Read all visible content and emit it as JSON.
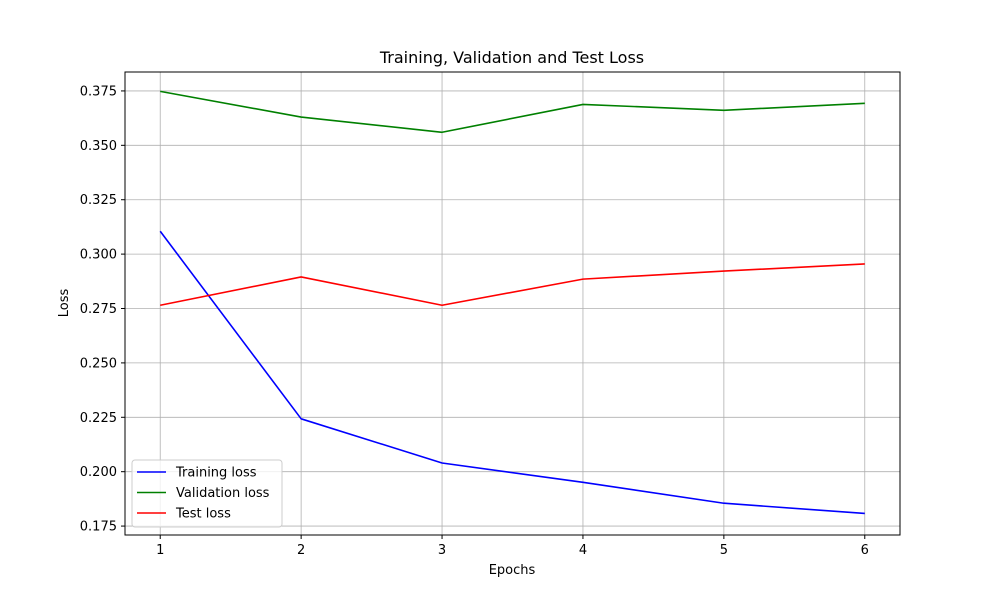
{
  "chart_data": {
    "type": "line",
    "title": "Training, Validation and Test Loss",
    "xlabel": "Epochs",
    "ylabel": "Loss",
    "x": [
      1,
      2,
      3,
      4,
      5,
      6
    ],
    "xlim": [
      0.75,
      6.25
    ],
    "ylim": [
      0.1709,
      0.3837
    ],
    "xticks": [
      "1",
      "2",
      "3",
      "4",
      "5",
      "6"
    ],
    "yticks": [
      "0.175",
      "0.200",
      "0.225",
      "0.250",
      "0.275",
      "0.300",
      "0.325",
      "0.350",
      "0.375"
    ],
    "grid": true,
    "legend_position": "lower-left",
    "series": [
      {
        "name": "Training loss",
        "color": "#0000ff",
        "values": [
          0.3105,
          0.2243,
          0.204,
          0.1951,
          0.1855,
          0.1808
        ]
      },
      {
        "name": "Validation loss",
        "color": "#008000",
        "values": [
          0.3748,
          0.363,
          0.356,
          0.3688,
          0.3661,
          0.3693
        ]
      },
      {
        "name": "Test loss",
        "color": "#ff0000",
        "values": [
          0.2765,
          0.2895,
          0.2765,
          0.2885,
          0.2922,
          0.2955
        ]
      }
    ]
  }
}
